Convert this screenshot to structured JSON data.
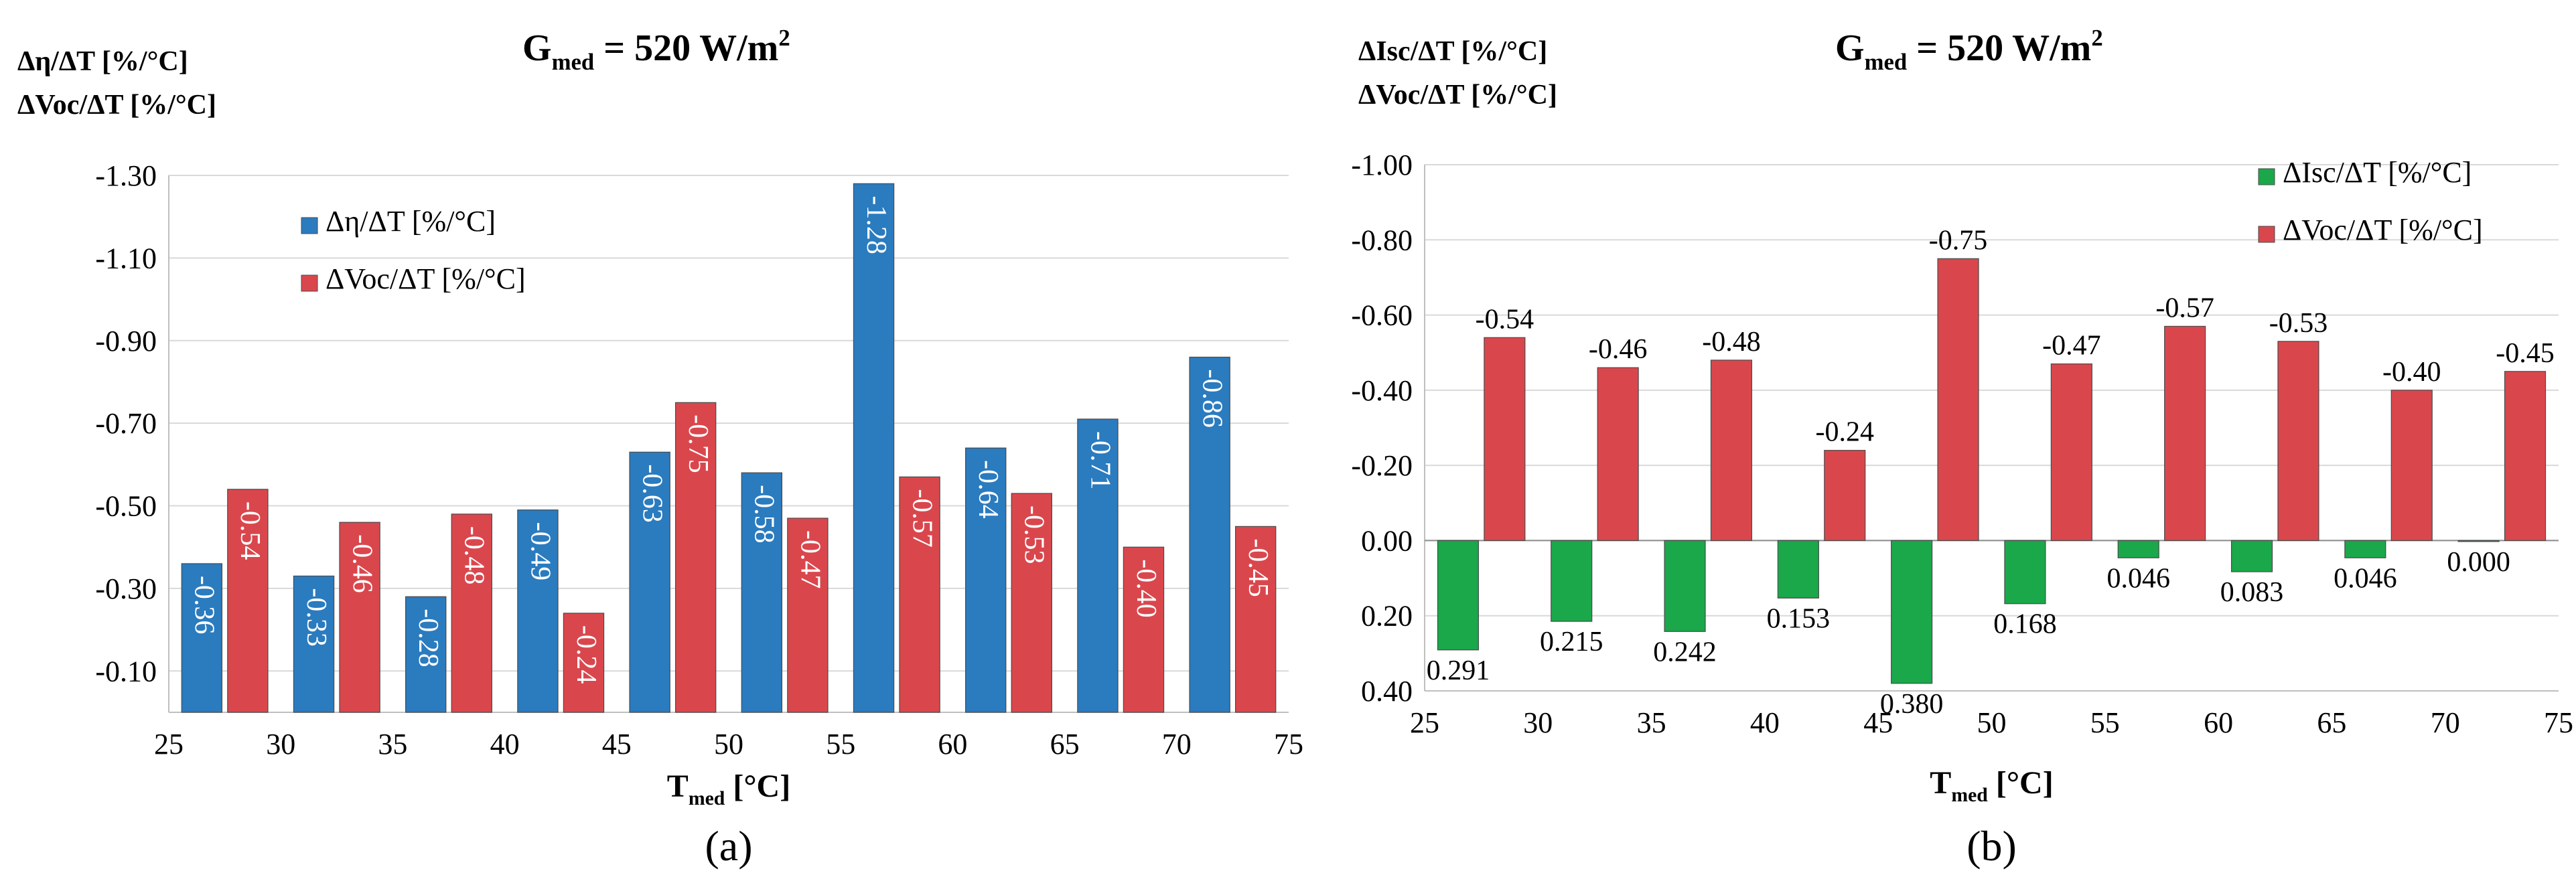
{
  "chart_data": [
    {
      "panel": "(a)",
      "type": "bar",
      "title_main": "G",
      "title_sub": "med",
      "title_rest": " = 520 W/m",
      "title_sup": "2",
      "ylabel_lines": [
        "Δη/ΔT [%/°C]",
        "ΔVoc/ΔT [%/°C]"
      ],
      "xlabel_main": "T",
      "xlabel_sub": "med",
      "xlabel_rest": " [°C]",
      "caption": "(a)",
      "x_ticks": [
        "25",
        "30",
        "35",
        "40",
        "45",
        "50",
        "55",
        "60",
        "65",
        "70",
        "75"
      ],
      "y_ticks": [
        "-1.30",
        "-1.10",
        "-0.90",
        "-0.70",
        "-0.50",
        "-0.30",
        "-0.10"
      ],
      "ylim_top": -1.3,
      "ylim_bottom": 0.0,
      "categories": [
        27.5,
        32.5,
        37.5,
        42.5,
        47.5,
        52.5,
        57.5,
        62.5,
        67.5,
        72.5
      ],
      "series": [
        {
          "name": "Δη/ΔT [%/°C]",
          "color": "#2b7bbf",
          "values": [
            -0.36,
            -0.33,
            -0.28,
            -0.49,
            -0.63,
            -0.58,
            -1.28,
            -0.64,
            -0.71,
            -0.86
          ],
          "labels": [
            "-0.36",
            "-0.33",
            "-0.28",
            "-0.49",
            "-0.63",
            "-0.58",
            "-1.28",
            "-0.64",
            "-0.71",
            "-0.86"
          ]
        },
        {
          "name": "ΔVoc/ΔT [%/°C]",
          "color": "#d9474d",
          "values": [
            -0.54,
            -0.46,
            -0.48,
            -0.24,
            -0.75,
            -0.47,
            -0.57,
            -0.53,
            -0.4,
            -0.45
          ],
          "labels": [
            "-0.54",
            "-0.46",
            "-0.48",
            "-0.24",
            "-0.75",
            "-0.47",
            "-0.57",
            "-0.53",
            "-0.40",
            "-0.45"
          ]
        }
      ],
      "legend_position": "top-left",
      "grid": "horizontal"
    },
    {
      "panel": "(b)",
      "type": "bar",
      "title_main": "G",
      "title_sub": "med",
      "title_rest": " = 520 W/m",
      "title_sup": "2",
      "ylabel_lines": [
        "ΔIsc/ΔT [%/°C]",
        "ΔVoc/ΔT [%/°C]"
      ],
      "xlabel_main": "T",
      "xlabel_sub": "med",
      "xlabel_rest": " [°C]",
      "caption": "(b)",
      "x_ticks": [
        "25",
        "30",
        "35",
        "40",
        "45",
        "50",
        "55",
        "60",
        "65",
        "70",
        "75"
      ],
      "y_ticks": [
        "-1.00",
        "-0.80",
        "-0.60",
        "-0.40",
        "-0.20",
        "0.00",
        "0.20",
        "0.40"
      ],
      "ylim_top": -1.0,
      "ylim_bottom": 0.4,
      "categories": [
        27.5,
        32.5,
        37.5,
        42.5,
        47.5,
        52.5,
        57.5,
        62.5,
        67.5,
        72.5
      ],
      "series": [
        {
          "name": "ΔIsc/ΔT [%/°C]",
          "color": "#1aa84a",
          "values": [
            0.291,
            0.215,
            0.242,
            0.153,
            0.38,
            0.168,
            0.046,
            0.083,
            0.046,
            0.0
          ],
          "labels": [
            "0.291",
            "0.215",
            "0.242",
            "0.153",
            "0.380",
            "0.168",
            "0.046",
            "0.083",
            "0.046",
            "0.000"
          ]
        },
        {
          "name": "ΔVoc/ΔT [%/°C]",
          "color": "#d9474d",
          "values": [
            -0.54,
            -0.46,
            -0.48,
            -0.24,
            -0.75,
            -0.47,
            -0.57,
            -0.53,
            -0.4,
            -0.45
          ],
          "labels": [
            "-0.54",
            "-0.46",
            "-0.48",
            "-0.24",
            "-0.75",
            "-0.47",
            "-0.57",
            "-0.53",
            "-0.40",
            "-0.45"
          ]
        }
      ],
      "legend_position": "top-right",
      "grid": "horizontal"
    }
  ]
}
